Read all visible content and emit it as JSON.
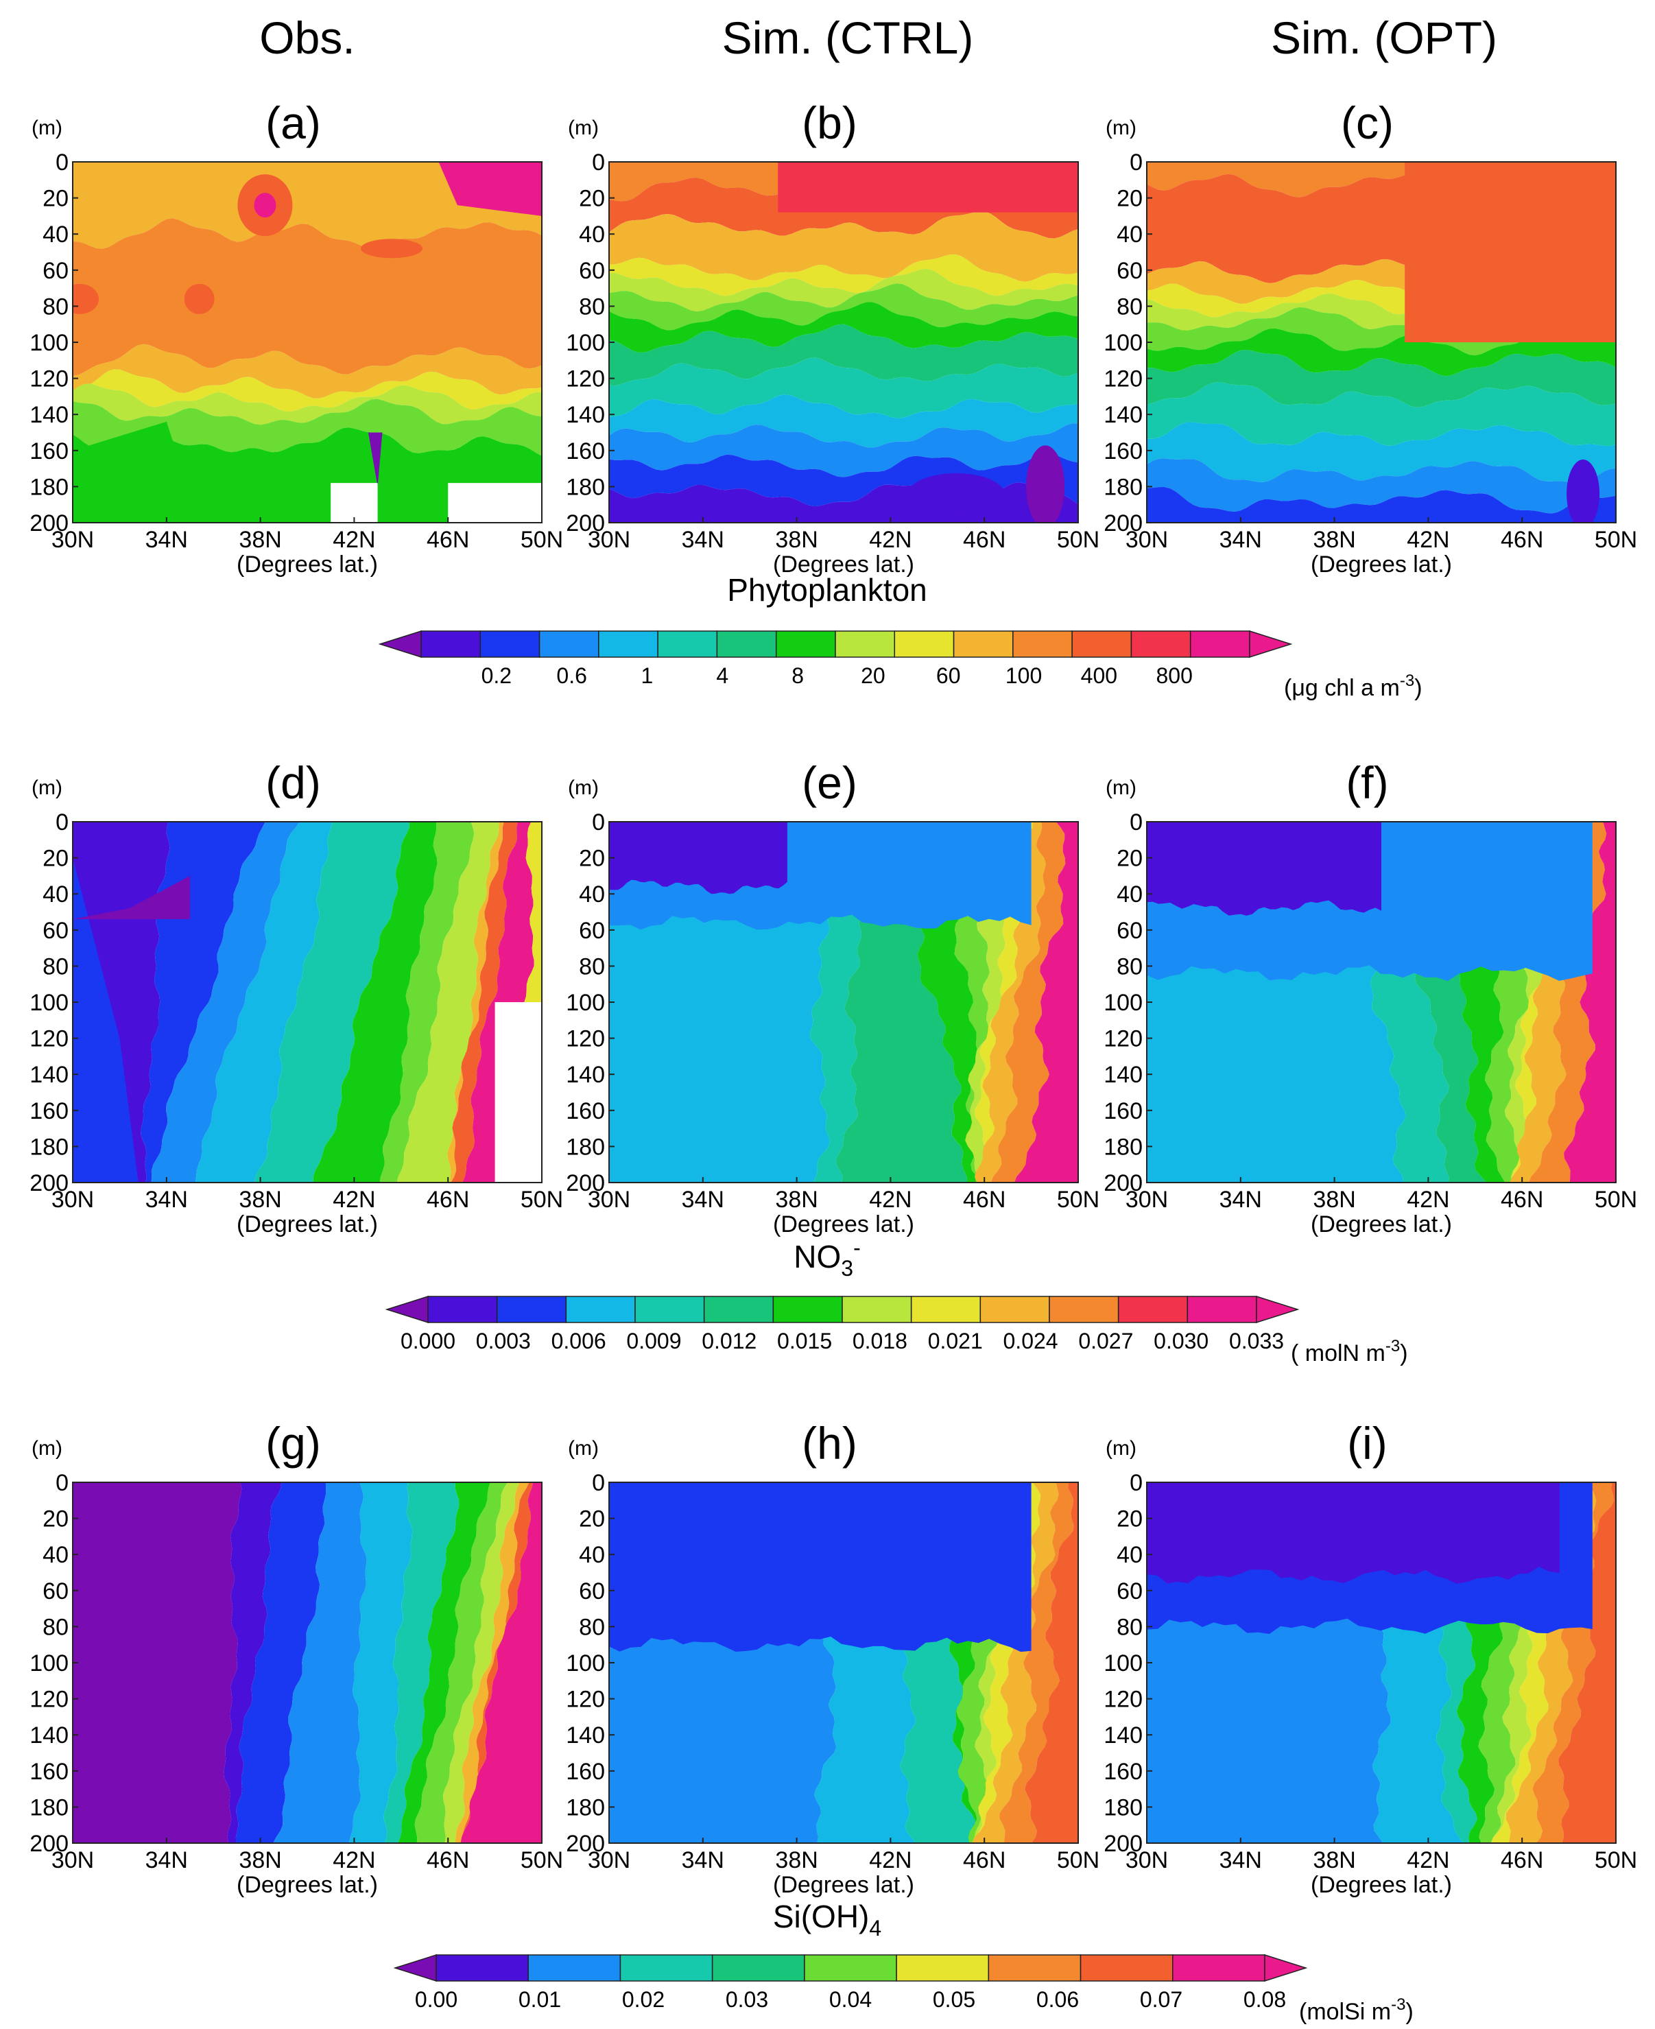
{
  "figure": {
    "columns": [
      "Obs.",
      "Sim. (CTRL)",
      "Sim. (OPT)"
    ]
  },
  "palette": {
    "colors": [
      "#7a0cb4",
      "#4a0fd8",
      "#1a38f2",
      "#1a8cf6",
      "#13b8e6",
      "#17c9ac",
      "#18c47a",
      "#12cd12",
      "#6bdc33",
      "#b9e63c",
      "#e6e42e",
      "#f2b431",
      "#f4882f",
      "#f2602f",
      "#f2334c",
      "#ea1a8c"
    ]
  },
  "rows": [
    {
      "id": "phyto",
      "variable_title": "Phytoplankton",
      "colorbar": {
        "ticks": [
          "0.2",
          "0.6",
          "1",
          "4",
          "8",
          "20",
          "60",
          "100",
          "400",
          "800"
        ],
        "unit": "(μg chl a m",
        "unit_sup": "-3",
        "unit_close": ")"
      },
      "panels": [
        {
          "label": "(a)",
          "yunit": "(m)",
          "yticks": [
            "0",
            "20",
            "40",
            "60",
            "80",
            "100",
            "120",
            "140",
            "160",
            "180",
            "200"
          ],
          "xticks": [
            "30N",
            "34N",
            "38N",
            "42N",
            "46N",
            "50N"
          ],
          "xlabel": "(Degrees lat.)"
        },
        {
          "label": "(b)",
          "yunit": "(m)",
          "yticks": [
            "0",
            "20",
            "40",
            "60",
            "80",
            "100",
            "120",
            "140",
            "160",
            "180",
            "200"
          ],
          "xticks": [
            "30N",
            "34N",
            "38N",
            "42N",
            "46N",
            "50N"
          ],
          "xlabel": "(Degrees lat.)"
        },
        {
          "label": "(c)",
          "yunit": "(m)",
          "yticks": [
            "0",
            "20",
            "40",
            "60",
            "80",
            "100",
            "120",
            "140",
            "160",
            "180",
            "200"
          ],
          "xticks": [
            "30N",
            "34N",
            "38N",
            "42N",
            "46N",
            "50N"
          ],
          "xlabel": "(Degrees lat.)"
        }
      ]
    },
    {
      "id": "no3",
      "variable_title": "NO",
      "variable_sub": "3",
      "variable_sup": "-",
      "colorbar": {
        "ticks": [
          "0.000",
          "0.003",
          "0.006",
          "0.009",
          "0.012",
          "0.015",
          "0.018",
          "0.021",
          "0.024",
          "0.027",
          "0.030",
          "0.033"
        ],
        "unit": "( molN m",
        "unit_sup": "-3",
        "unit_close": ")"
      },
      "panels": [
        {
          "label": "(d)",
          "yunit": "(m)",
          "yticks": [
            "0",
            "20",
            "40",
            "60",
            "80",
            "100",
            "120",
            "140",
            "160",
            "180",
            "200"
          ],
          "xticks": [
            "30N",
            "34N",
            "38N",
            "42N",
            "46N",
            "50N"
          ],
          "xlabel": "(Degrees lat.)"
        },
        {
          "label": "(e)",
          "yunit": "(m)",
          "yticks": [
            "0",
            "20",
            "40",
            "60",
            "80",
            "100",
            "120",
            "140",
            "160",
            "180",
            "200"
          ],
          "xticks": [
            "30N",
            "34N",
            "38N",
            "42N",
            "46N",
            "50N"
          ],
          "xlabel": "(Degrees lat.)"
        },
        {
          "label": "(f)",
          "yunit": "(m)",
          "yticks": [
            "0",
            "20",
            "40",
            "60",
            "80",
            "100",
            "120",
            "140",
            "160",
            "180",
            "200"
          ],
          "xticks": [
            "30N",
            "34N",
            "38N",
            "42N",
            "46N",
            "50N"
          ],
          "xlabel": "(Degrees lat.)"
        }
      ]
    },
    {
      "id": "sioh4",
      "variable_title": "Si(OH)",
      "variable_sub": "4",
      "colorbar": {
        "ticks": [
          "0.00",
          "0.01",
          "0.02",
          "0.03",
          "0.04",
          "0.05",
          "0.06",
          "0.07",
          "0.08"
        ],
        "unit": "(molSi m",
        "unit_sup": "-3",
        "unit_close": ")"
      },
      "panels": [
        {
          "label": "(g)",
          "yunit": "(m)",
          "yticks": [
            "0",
            "20",
            "40",
            "60",
            "80",
            "100",
            "120",
            "140",
            "160",
            "180",
            "200"
          ],
          "xticks": [
            "30N",
            "34N",
            "38N",
            "42N",
            "46N",
            "50N"
          ],
          "xlabel": "(Degrees lat.)"
        },
        {
          "label": "(h)",
          "yunit": "(m)",
          "yticks": [
            "0",
            "20",
            "40",
            "60",
            "80",
            "100",
            "120",
            "140",
            "160",
            "180",
            "200"
          ],
          "xticks": [
            "30N",
            "34N",
            "38N",
            "42N",
            "46N",
            "50N"
          ],
          "xlabel": "(Degrees lat.)"
        },
        {
          "label": "(i)",
          "yunit": "(m)",
          "yticks": [
            "0",
            "20",
            "40",
            "60",
            "80",
            "100",
            "120",
            "140",
            "160",
            "180",
            "200"
          ],
          "xticks": [
            "30N",
            "34N",
            "38N",
            "42N",
            "46N",
            "50N"
          ],
          "xlabel": "(Degrees lat.)"
        }
      ]
    }
  ],
  "chart_data": [
    {
      "type": "heatmap",
      "variable": "Phytoplankton",
      "unit": "μg chl a m-3",
      "x": {
        "label": "(Degrees lat.)",
        "range": [
          30,
          50
        ],
        "ticks": [
          "30N",
          "34N",
          "38N",
          "42N",
          "46N",
          "50N"
        ]
      },
      "y": {
        "label": "(m)",
        "range": [
          0,
          200
        ],
        "reversed": true
      },
      "levels": [
        0.2,
        0.6,
        1,
        4,
        8,
        20,
        60,
        100,
        400,
        800
      ],
      "panels": [
        {
          "label": "(a)",
          "source": "Obs.",
          "surface_band": "orange 100-400",
          "deep_band": "green 8-20"
        },
        {
          "label": "(b)",
          "source": "Sim. (CTRL)",
          "surface_band": "red 400-800",
          "deep_band": "blue/violet <1"
        },
        {
          "label": "(c)",
          "source": "Sim. (OPT)",
          "surface_band": "red 400-800",
          "deep_band": "teal/blue 1-4"
        }
      ]
    },
    {
      "type": "heatmap",
      "variable": "NO3-",
      "unit": "molN m-3",
      "x": {
        "label": "(Degrees lat.)",
        "range": [
          30,
          50
        ],
        "ticks": [
          "30N",
          "34N",
          "38N",
          "42N",
          "46N",
          "50N"
        ]
      },
      "y": {
        "label": "(m)",
        "range": [
          0,
          200
        ],
        "reversed": true
      },
      "levels": [
        0.0,
        0.003,
        0.006,
        0.009,
        0.012,
        0.015,
        0.018,
        0.021,
        0.024,
        0.027,
        0.03,
        0.033
      ],
      "panels": [
        {
          "label": "(d)",
          "source": "Obs.",
          "south_value": 0.002,
          "north_value": 0.03
        },
        {
          "label": "(e)",
          "source": "Sim. (CTRL)",
          "south_value": 0.003,
          "north_value": 0.033
        },
        {
          "label": "(f)",
          "source": "Sim. (OPT)",
          "south_value": 0.003,
          "north_value": 0.033
        }
      ]
    },
    {
      "type": "heatmap",
      "variable": "Si(OH)4",
      "unit": "molSi m-3",
      "x": {
        "label": "(Degrees lat.)",
        "range": [
          30,
          50
        ],
        "ticks": [
          "30N",
          "34N",
          "38N",
          "42N",
          "46N",
          "50N"
        ]
      },
      "y": {
        "label": "(m)",
        "range": [
          0,
          200
        ],
        "reversed": true
      },
      "levels": [
        0.0,
        0.01,
        0.02,
        0.03,
        0.04,
        0.05,
        0.06,
        0.07,
        0.08
      ],
      "panels": [
        {
          "label": "(g)",
          "source": "Obs.",
          "south_value": 0.002,
          "north_value": 0.08
        },
        {
          "label": "(h)",
          "source": "Sim. (CTRL)",
          "south_value": 0.02,
          "north_value": 0.075
        },
        {
          "label": "(i)",
          "source": "Sim. (OPT)",
          "south_value": 0.015,
          "north_value": 0.08
        }
      ]
    }
  ]
}
